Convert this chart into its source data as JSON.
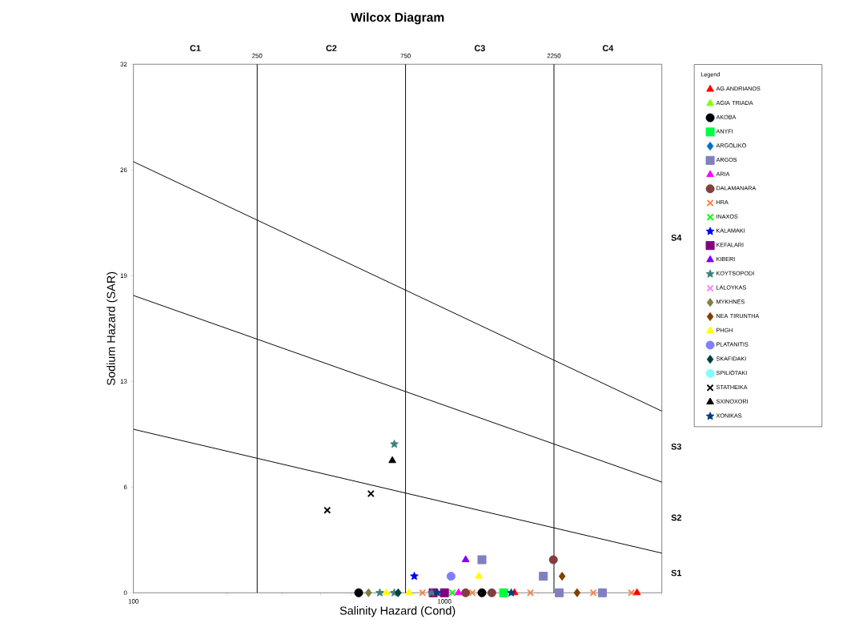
{
  "chart_data": {
    "type": "scatter",
    "title": "Wilcox Diagram",
    "xlabel": "Salinity Hazard (Cond)",
    "ylabel": "Sodium Hazard (SAR)",
    "legend_title": "Legend",
    "legend": "right",
    "log": "x",
    "xlim": [
      100,
      5000
    ],
    "ylim": [
      0,
      32
    ],
    "xticks": [
      100,
      {
        "value": 200,
        "label": null
      },
      {
        "value": 300,
        "label": null
      },
      {
        "value": 400,
        "label": null
      },
      {
        "value": 500,
        "label": null
      },
      {
        "value": 600,
        "label": null
      },
      {
        "value": 700,
        "label": null
      },
      {
        "value": 800,
        "label": null
      },
      {
        "value": 900,
        "label": null
      },
      1000,
      {
        "value": 2000,
        "label": null
      },
      {
        "value": 3000,
        "label": null
      },
      {
        "value": 4000,
        "label": null
      },
      {
        "value": 5000,
        "label": null
      }
    ],
    "yticks": [
      0,
      {
        "value": 6.4,
        "label": "6"
      },
      {
        "value": 12.8,
        "label": "13"
      },
      {
        "value": 19.2,
        "label": "19"
      },
      {
        "value": 25.6,
        "label": "26"
      },
      32
    ],
    "ref_lines": [
      {
        "axis": "x",
        "value": 250,
        "label": "250",
        "color": "#000000"
      },
      {
        "axis": "x",
        "value": 750,
        "label": "750",
        "color": "#000000"
      },
      {
        "axis": "x",
        "value": 2250,
        "label": "2250",
        "color": "#000000"
      }
    ],
    "annotations": [
      "C1",
      "C2",
      "C3",
      "C4",
      "S1",
      "S2",
      "S3",
      "S4"
    ],
    "series": [
      {
        "name": "AG.ANDRIANOS",
        "color": "#ff0000",
        "marker": "triangle",
        "x": [
          1680,
          4160
        ],
        "values": [
          0,
          0
        ]
      },
      {
        "name": "AGIA TRIADA",
        "color": "#80ff00",
        "marker": "triangle",
        "x": [
          null
        ],
        "values": [
          null
        ]
      },
      {
        "name": "AKOBA",
        "color": "#000000",
        "marker": "circle",
        "x": [
          530,
          1320
        ],
        "values": [
          0,
          0
        ]
      },
      {
        "name": "ANYFI",
        "color": "#00ff40",
        "marker": "square",
        "x": [
          1550
        ],
        "values": [
          0
        ]
      },
      {
        "name": "ARGOLIKO",
        "color": "#0070c0",
        "marker": "diamond",
        "x": [
          null
        ],
        "values": [
          null
        ]
      },
      {
        "name": "ARGOS",
        "color": "#8080c0",
        "marker": "square",
        "x": [
          1320,
          2080,
          2340,
          3220
        ],
        "values": [
          2,
          1,
          0,
          0
        ]
      },
      {
        "name": "ARIA",
        "color": "#ff00ff",
        "marker": "triangle",
        "x": [
          1110
        ],
        "values": [
          0
        ]
      },
      {
        "name": "DALAMANARA",
        "color": "#804040",
        "marker": "circle",
        "x": [
          1170,
          1420,
          2240
        ],
        "values": [
          0,
          0,
          2
        ]
      },
      {
        "name": "HRA",
        "color": "#ff8040",
        "marker": "cross",
        "x": [
          850,
          1230,
          1890,
          3010,
          3990
        ],
        "values": [
          0,
          0,
          0,
          0,
          0
        ]
      },
      {
        "name": "INAXOS",
        "color": "#00ff00",
        "marker": "cross",
        "x": [
          1060
        ],
        "values": [
          0
        ]
      },
      {
        "name": "KALAMAKI",
        "color": "#0000ff",
        "marker": "star",
        "x": [
          800
        ],
        "values": [
          1
        ]
      },
      {
        "name": "KEFALARI",
        "color": "#800080",
        "marker": "square",
        "x": [
          920,
          1000
        ],
        "values": [
          0,
          0
        ]
      },
      {
        "name": "KIBERI",
        "color": "#8000ff",
        "marker": "triangle",
        "x": [
          1170
        ],
        "values": [
          2
        ]
      },
      {
        "name": "KOYTSOPODI",
        "color": "#408080",
        "marker": "star",
        "x": [
          620,
          690,
          690,
          910
        ],
        "values": [
          0,
          0,
          9,
          0
        ]
      },
      {
        "name": "LALOYKAS",
        "color": "#ff80ff",
        "marker": "cross",
        "x": [
          null
        ],
        "values": [
          null
        ]
      },
      {
        "name": "MYKHNES",
        "color": "#808040",
        "marker": "diamond",
        "x": [
          570
        ],
        "values": [
          0
        ]
      },
      {
        "name": "NEA TIRUNTHA",
        "color": "#804000",
        "marker": "diamond",
        "x": [
          2390,
          2670
        ],
        "values": [
          1,
          0
        ]
      },
      {
        "name": "PHGH",
        "color": "#ffff00",
        "marker": "triangle",
        "x": [
          650,
          770,
          1290
        ],
        "values": [
          0,
          0,
          1
        ]
      },
      {
        "name": "PLATANITIS",
        "color": "#8080ff",
        "marker": "circle",
        "x": [
          1050
        ],
        "values": [
          1
        ]
      },
      {
        "name": "SKAFIDAKI",
        "color": "#004040",
        "marker": "diamond",
        "x": [
          710
        ],
        "values": [
          0
        ]
      },
      {
        "name": "SPILIOTAKI",
        "color": "#80ffff",
        "marker": "circle",
        "x": [
          null
        ],
        "values": [
          null
        ]
      },
      {
        "name": "STATHEIKA",
        "color": "#000000",
        "marker": "cross",
        "x": [
          420,
          580
        ],
        "values": [
          5,
          6
        ]
      },
      {
        "name": "SXINOXORI",
        "color": "#000000",
        "marker": "triangle",
        "x": [
          680
        ],
        "values": [
          8
        ]
      },
      {
        "name": "XONIKAS",
        "color": "#004080",
        "marker": "star",
        "x": [
          950,
          1640
        ],
        "values": [
          0,
          0
        ]
      },
      {
        "type": "line",
        "color": "#000000",
        "marker": "none",
        "x": [
          100,
          5000
        ],
        "values": [
          26.1,
          11.0
        ]
      },
      {
        "type": "line",
        "color": "#000000",
        "marker": "none",
        "x": [
          100,
          5000
        ],
        "values": [
          18.0,
          6.7
        ]
      },
      {
        "type": "line",
        "color": "#000000",
        "marker": "none",
        "x": [
          100,
          5000
        ],
        "values": [
          9.9,
          2.4
        ]
      }
    ]
  }
}
